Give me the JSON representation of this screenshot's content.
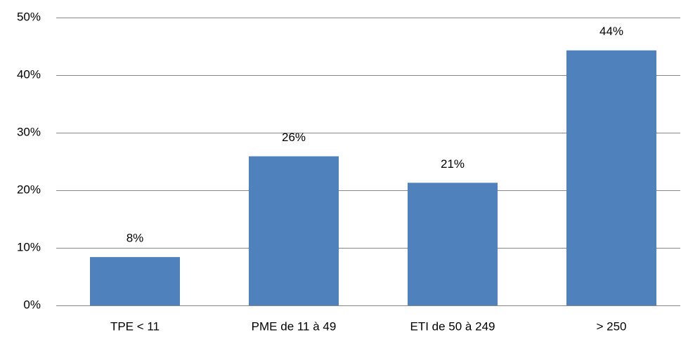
{
  "chart_data": {
    "type": "bar",
    "categories": [
      "TPE < 11",
      "PME de 11 à 49",
      "ETI de 50 à 249",
      "> 250"
    ],
    "values": [
      8.4,
      25.9,
      21.3,
      44.3
    ],
    "value_labels": [
      "8%",
      "26%",
      "21%",
      "44%"
    ],
    "color": "#4f81bd",
    "ylim": [
      0,
      50
    ],
    "yticks": [
      {
        "value": 0,
        "label": "0%"
      },
      {
        "value": 10,
        "label": "10%"
      },
      {
        "value": 20,
        "label": "20%"
      },
      {
        "value": 30,
        "label": "30%"
      },
      {
        "value": 40,
        "label": "40%"
      },
      {
        "value": 50,
        "label": "50%"
      }
    ],
    "grid": true
  }
}
